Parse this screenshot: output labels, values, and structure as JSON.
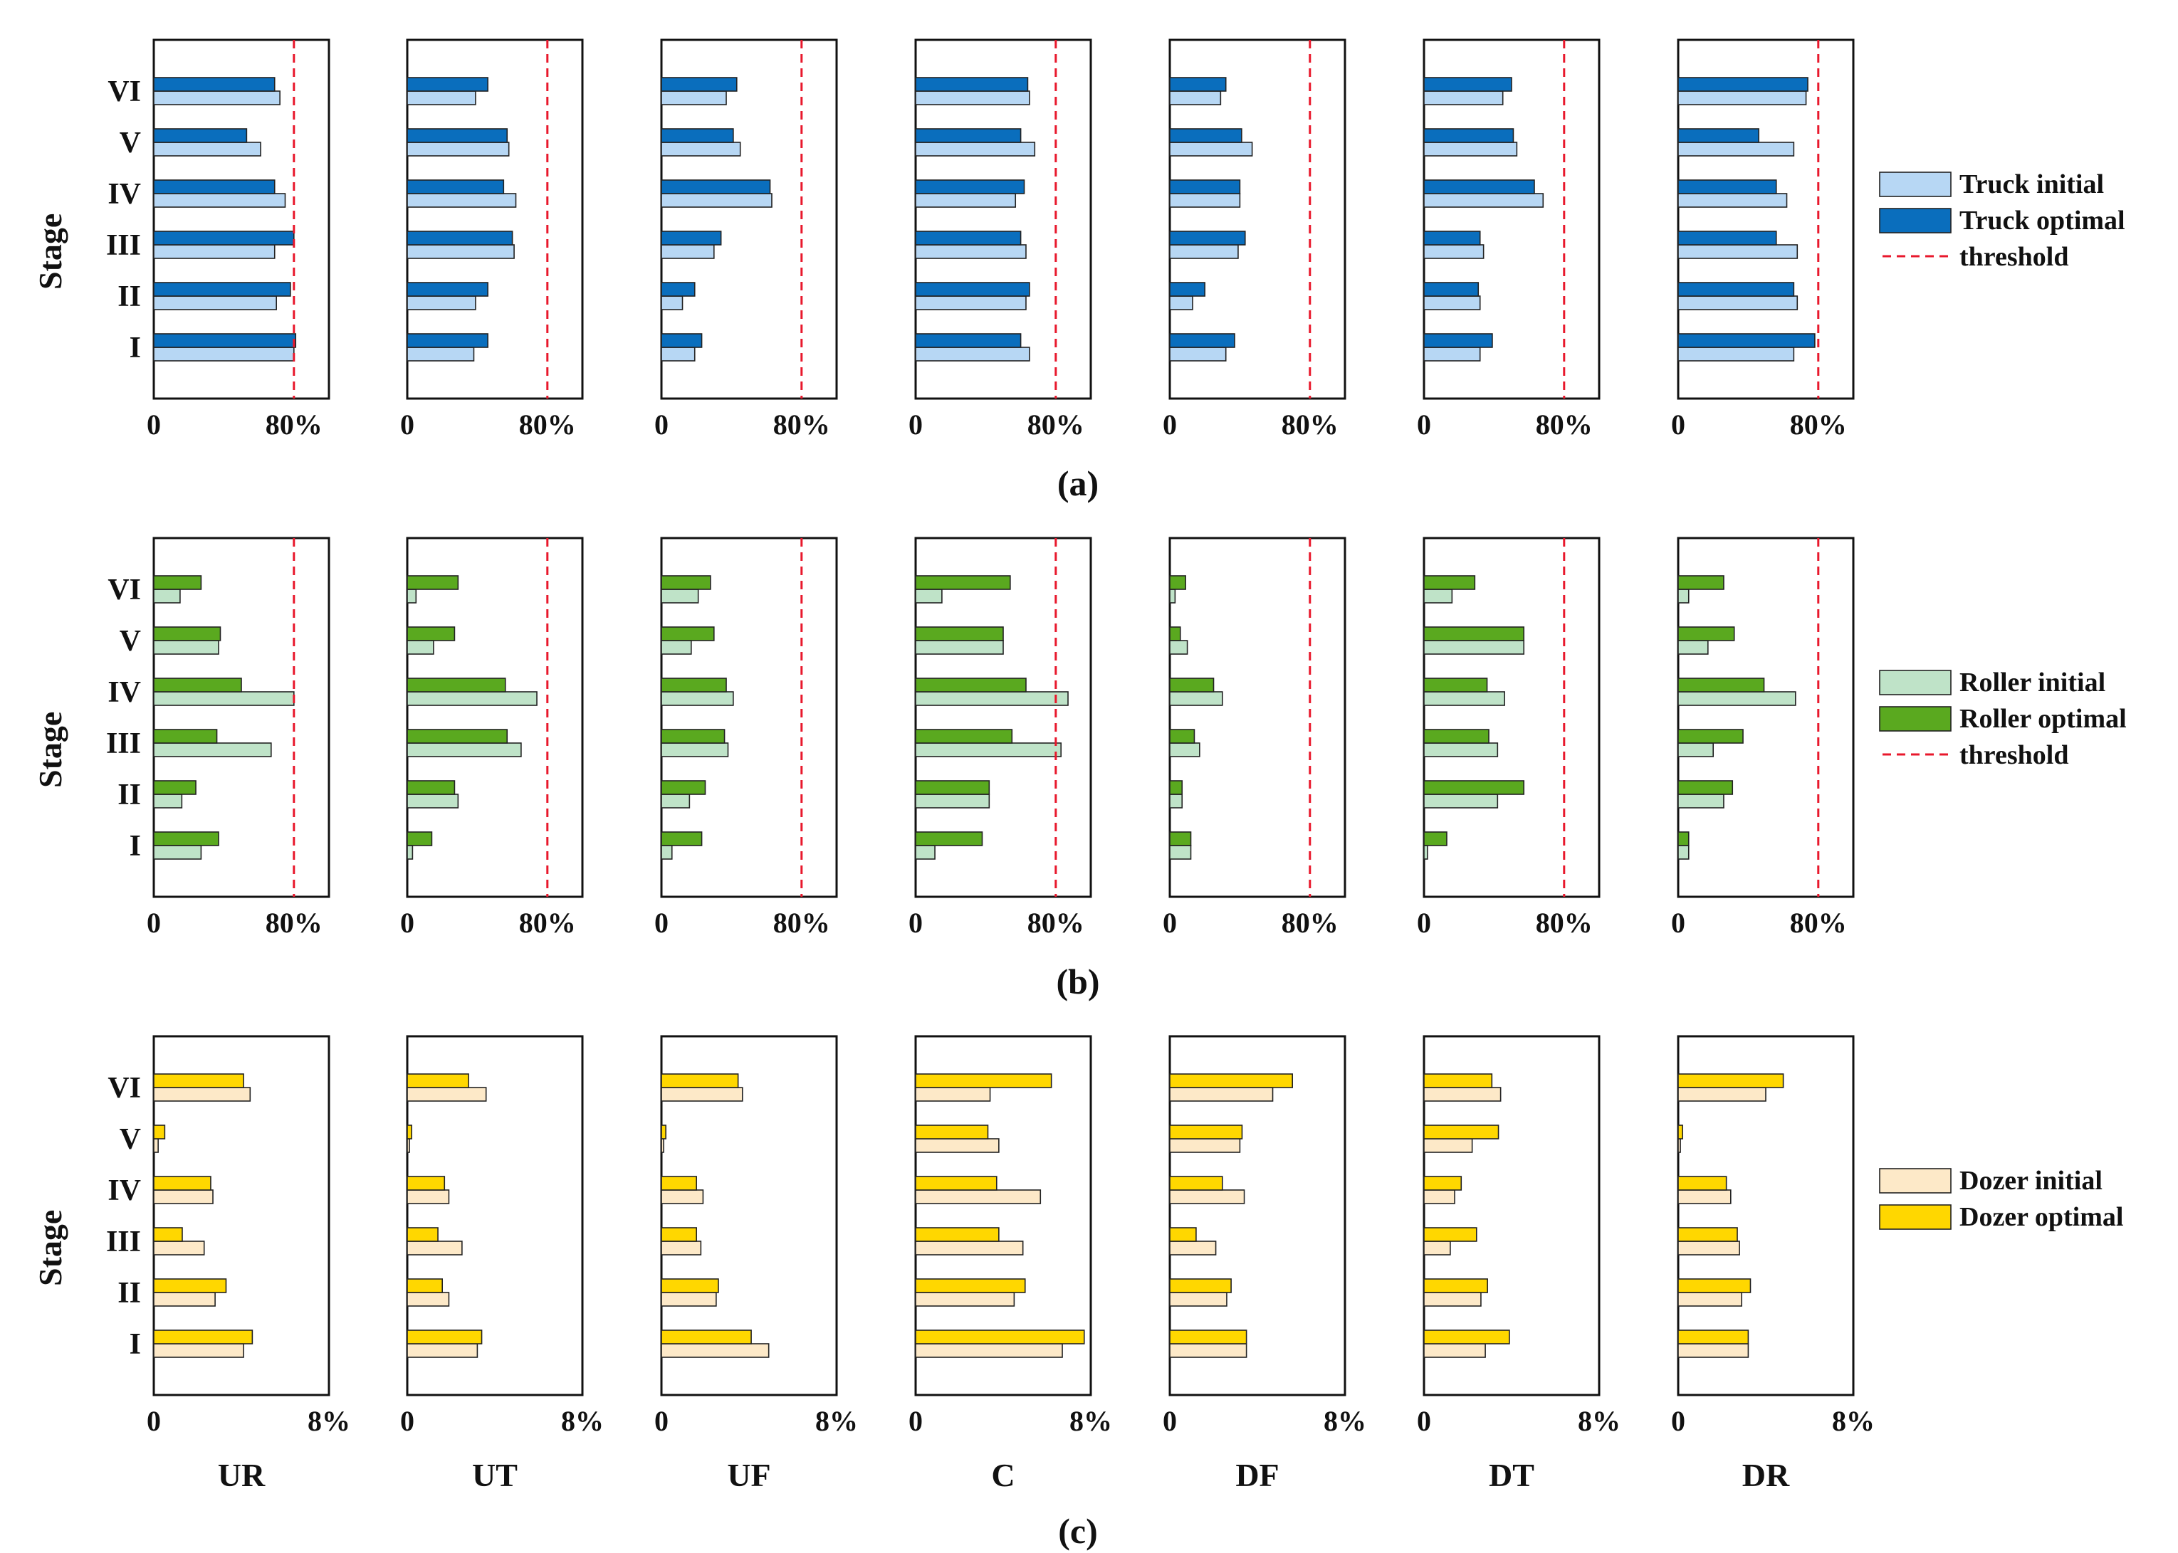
{
  "chart_data": [
    {
      "type": "bar",
      "orientation": "horizontal",
      "panel_label": "(a)",
      "ylabel": "Stage",
      "stages": [
        "I",
        "II",
        "III",
        "IV",
        "V",
        "VI"
      ],
      "xlim": [
        0,
        1.0
      ],
      "xtick_labels": [
        "0",
        "80%"
      ],
      "threshold": 0.8,
      "legend": {
        "initial": "Truck initial",
        "optimal": "Truck optimal",
        "threshold": "threshold"
      },
      "colors": {
        "initial": "#b7d7f4",
        "optimal": "#0a6ebd",
        "threshold": "#e8182c"
      },
      "subplots": [
        {
          "name": "UR",
          "initial": [
            0.8,
            0.7,
            0.69,
            0.75,
            0.61,
            0.72
          ],
          "optimal": [
            0.81,
            0.78,
            0.8,
            0.69,
            0.53,
            0.69
          ]
        },
        {
          "name": "UT",
          "initial": [
            0.38,
            0.39,
            0.61,
            0.62,
            0.58,
            0.39
          ],
          "optimal": [
            0.46,
            0.46,
            0.6,
            0.55,
            0.57,
            0.46
          ]
        },
        {
          "name": "UF",
          "initial": [
            0.19,
            0.12,
            0.3,
            0.63,
            0.45,
            0.37
          ],
          "optimal": [
            0.23,
            0.19,
            0.34,
            0.62,
            0.41,
            0.43
          ]
        },
        {
          "name": "C",
          "initial": [
            0.65,
            0.63,
            0.63,
            0.57,
            0.68,
            0.65
          ],
          "optimal": [
            0.6,
            0.65,
            0.6,
            0.62,
            0.6,
            0.64
          ]
        },
        {
          "name": "DF",
          "initial": [
            0.32,
            0.13,
            0.39,
            0.4,
            0.47,
            0.29
          ],
          "optimal": [
            0.37,
            0.2,
            0.43,
            0.4,
            0.41,
            0.32
          ]
        },
        {
          "name": "DT",
          "initial": [
            0.32,
            0.32,
            0.34,
            0.68,
            0.53,
            0.45
          ],
          "optimal": [
            0.39,
            0.31,
            0.32,
            0.63,
            0.51,
            0.5
          ]
        },
        {
          "name": "DR",
          "initial": [
            0.66,
            0.68,
            0.68,
            0.62,
            0.66,
            0.73
          ],
          "optimal": [
            0.78,
            0.66,
            0.56,
            0.56,
            0.46,
            0.74
          ]
        }
      ]
    },
    {
      "type": "bar",
      "orientation": "horizontal",
      "panel_label": "(b)",
      "ylabel": "Stage",
      "stages": [
        "I",
        "II",
        "III",
        "IV",
        "V",
        "VI"
      ],
      "xlim": [
        0,
        1.0
      ],
      "xtick_labels": [
        "0",
        "80%"
      ],
      "threshold": 0.8,
      "legend": {
        "initial": "Roller initial",
        "optimal": "Roller optimal",
        "threshold": "threshold"
      },
      "colors": {
        "initial": "#bfe3c8",
        "optimal": "#5aa91f",
        "threshold": "#e8182c"
      },
      "subplots": [
        {
          "name": "UR",
          "initial": [
            0.27,
            0.16,
            0.67,
            0.8,
            0.37,
            0.15
          ],
          "optimal": [
            0.37,
            0.24,
            0.36,
            0.5,
            0.38,
            0.27
          ]
        },
        {
          "name": "UT",
          "initial": [
            0.03,
            0.29,
            0.65,
            0.74,
            0.15,
            0.05
          ],
          "optimal": [
            0.14,
            0.27,
            0.57,
            0.56,
            0.27,
            0.29
          ]
        },
        {
          "name": "UF",
          "initial": [
            0.06,
            0.16,
            0.38,
            0.41,
            0.17,
            0.21
          ],
          "optimal": [
            0.23,
            0.25,
            0.36,
            0.37,
            0.3,
            0.28
          ]
        },
        {
          "name": "C",
          "initial": [
            0.11,
            0.42,
            0.83,
            0.87,
            0.5,
            0.15
          ],
          "optimal": [
            0.38,
            0.42,
            0.55,
            0.63,
            0.5,
            0.54
          ]
        },
        {
          "name": "DF",
          "initial": [
            0.12,
            0.07,
            0.17,
            0.3,
            0.1,
            0.03
          ],
          "optimal": [
            0.12,
            0.07,
            0.14,
            0.25,
            0.06,
            0.09
          ]
        },
        {
          "name": "DT",
          "initial": [
            0.02,
            0.42,
            0.42,
            0.46,
            0.57,
            0.16
          ],
          "optimal": [
            0.13,
            0.57,
            0.37,
            0.36,
            0.57,
            0.29
          ]
        },
        {
          "name": "DR",
          "initial": [
            0.06,
            0.26,
            0.2,
            0.67,
            0.17,
            0.06
          ],
          "optimal": [
            0.06,
            0.31,
            0.37,
            0.49,
            0.32,
            0.26
          ]
        }
      ]
    },
    {
      "type": "bar",
      "orientation": "horizontal",
      "panel_label": "(c)",
      "ylabel": "Stage",
      "stages": [
        "I",
        "II",
        "III",
        "IV",
        "V",
        "VI"
      ],
      "xlim": [
        0,
        0.08
      ],
      "xtick_labels": [
        "0",
        "8%"
      ],
      "threshold": null,
      "legend": {
        "initial": "Dozer initial",
        "optimal": "Dozer optimal"
      },
      "colors": {
        "initial": "#fde9c8",
        "optimal": "#ffd700"
      },
      "subplots": [
        {
          "name": "UR",
          "initial": [
            0.041,
            0.028,
            0.023,
            0.027,
            0.002,
            0.044
          ],
          "optimal": [
            0.045,
            0.033,
            0.013,
            0.026,
            0.005,
            0.041
          ]
        },
        {
          "name": "UT",
          "initial": [
            0.032,
            0.019,
            0.025,
            0.019,
            0.001,
            0.036
          ],
          "optimal": [
            0.034,
            0.016,
            0.014,
            0.017,
            0.002,
            0.028
          ]
        },
        {
          "name": "UF",
          "initial": [
            0.049,
            0.025,
            0.018,
            0.019,
            0.001,
            0.037
          ],
          "optimal": [
            0.041,
            0.026,
            0.016,
            0.016,
            0.002,
            0.035
          ]
        },
        {
          "name": "C",
          "initial": [
            0.067,
            0.045,
            0.049,
            0.057,
            0.038,
            0.034
          ],
          "optimal": [
            0.077,
            0.05,
            0.038,
            0.037,
            0.033,
            0.062
          ]
        },
        {
          "name": "DF",
          "initial": [
            0.035,
            0.026,
            0.021,
            0.034,
            0.032,
            0.047
          ],
          "optimal": [
            0.035,
            0.028,
            0.012,
            0.024,
            0.033,
            0.056
          ]
        },
        {
          "name": "DT",
          "initial": [
            0.028,
            0.026,
            0.012,
            0.014,
            0.022,
            0.035
          ],
          "optimal": [
            0.039,
            0.029,
            0.024,
            0.017,
            0.034,
            0.031
          ]
        },
        {
          "name": "DR",
          "initial": [
            0.032,
            0.029,
            0.028,
            0.024,
            0.001,
            0.04
          ],
          "optimal": [
            0.032,
            0.033,
            0.027,
            0.022,
            0.002,
            0.048
          ]
        }
      ]
    }
  ]
}
